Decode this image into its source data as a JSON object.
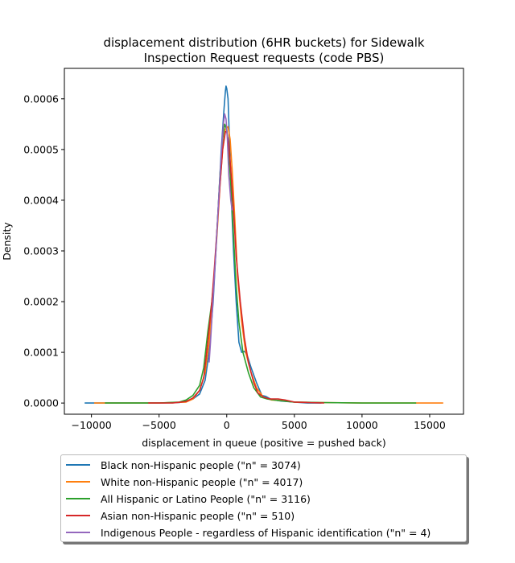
{
  "chart_data": {
    "type": "line",
    "title": "displacement distribution (6HR buckets) for Sidewalk\nInspection Request requests (code PBS)",
    "xlabel": "displacement in queue (positive = pushed back)",
    "ylabel": "Density",
    "xlim": [
      -12000,
      17500
    ],
    "ylim": [
      -2.2e-05,
      0.00066
    ],
    "x_ticks": [
      -10000,
      -5000,
      0,
      5000,
      10000,
      15000
    ],
    "x_tick_labels": [
      "−10000",
      "−5000",
      "0",
      "5000",
      "10000",
      "15000"
    ],
    "y_ticks": [
      0.0,
      0.0001,
      0.0002,
      0.0003,
      0.0004,
      0.0005,
      0.0006
    ],
    "y_tick_labels": [
      "0.0000",
      "0.0001",
      "0.0002",
      "0.0003",
      "0.0004",
      "0.0005",
      "0.0006"
    ],
    "grid": false,
    "legend_position": "below-plot",
    "series": [
      {
        "name": "Black non-Hispanic people (\"n\" = 3074)",
        "color": "#1f77b4",
        "points": [
          [
            -10500,
            0
          ],
          [
            -5000,
            0
          ],
          [
            -3500,
            1e-06
          ],
          [
            -3000,
            4e-06
          ],
          [
            -2500,
            8e-06
          ],
          [
            -2000,
            1.8e-05
          ],
          [
            -1600,
            4.5e-05
          ],
          [
            -1300,
            0.0001
          ],
          [
            -1000,
            0.0002
          ],
          [
            -800,
            0.0003
          ],
          [
            -600,
            0.0004
          ],
          [
            -400,
            0.0005
          ],
          [
            -200,
            0.00058
          ],
          [
            -100,
            0.000615
          ],
          [
            -50,
            0.000625
          ],
          [
            0,
            0.00062
          ],
          [
            100,
            0.0006
          ],
          [
            200,
            0.00052
          ],
          [
            350,
            0.0004
          ],
          [
            500,
            0.0003
          ],
          [
            700,
            0.0002
          ],
          [
            900,
            0.00012
          ],
          [
            1100,
            0.0001
          ],
          [
            1300,
            0.000102
          ],
          [
            1500,
            9.5e-05
          ],
          [
            1800,
            7e-05
          ],
          [
            2200,
            4e-05
          ],
          [
            2600,
            1.5e-05
          ],
          [
            2900,
            1.3e-05
          ],
          [
            3300,
            7e-06
          ],
          [
            4000,
            4e-06
          ],
          [
            5000,
            2e-06
          ],
          [
            6000,
            0
          ],
          [
            7000,
            0
          ]
        ]
      },
      {
        "name": "White non-Hispanic people (\"n\" = 4017)",
        "color": "#ff7f0e",
        "points": [
          [
            -9800,
            0
          ],
          [
            -5000,
            0
          ],
          [
            -3000,
            2e-06
          ],
          [
            -2500,
            8e-06
          ],
          [
            -2000,
            2.5e-05
          ],
          [
            -1600,
            6e-05
          ],
          [
            -1300,
            0.00012
          ],
          [
            -1000,
            0.00022
          ],
          [
            -700,
            0.00034
          ],
          [
            -500,
            0.00043
          ],
          [
            -300,
            0.0005
          ],
          [
            -100,
            0.00054
          ],
          [
            100,
            0.000545
          ],
          [
            250,
            0.00052
          ],
          [
            400,
            0.00046
          ],
          [
            600,
            0.00036
          ],
          [
            800,
            0.00025
          ],
          [
            1100,
            0.00016
          ],
          [
            1400,
            0.0001
          ],
          [
            1800,
            6e-05
          ],
          [
            2200,
            3e-05
          ],
          [
            2700,
            1.2e-05
          ],
          [
            3300,
            6e-06
          ],
          [
            4000,
            5e-06
          ],
          [
            5000,
            2e-06
          ],
          [
            7000,
            1e-06
          ],
          [
            10000,
            0
          ],
          [
            16000,
            0
          ]
        ]
      },
      {
        "name": "All Hispanic or Latino People (\"n\" = 3116)",
        "color": "#2ca02c",
        "points": [
          [
            -9000,
            0
          ],
          [
            -5000,
            0
          ],
          [
            -3500,
            2e-06
          ],
          [
            -3000,
            6e-06
          ],
          [
            -2500,
            1.5e-05
          ],
          [
            -2000,
            3.5e-05
          ],
          [
            -1700,
            7e-05
          ],
          [
            -1400,
            0.00014
          ],
          [
            -1100,
            0.0002
          ],
          [
            -900,
            0.00026
          ],
          [
            -700,
            0.00035
          ],
          [
            -500,
            0.00045
          ],
          [
            -300,
            0.00052
          ],
          [
            -150,
            0.00055
          ],
          [
            0,
            0.00054
          ],
          [
            150,
            0.0005
          ],
          [
            300,
            0.00043
          ],
          [
            500,
            0.00033
          ],
          [
            700,
            0.00023
          ],
          [
            900,
            0.00016
          ],
          [
            1200,
            0.0001
          ],
          [
            1600,
            6e-05
          ],
          [
            2000,
            3e-05
          ],
          [
            2500,
            1.2e-05
          ],
          [
            3000,
            8e-06
          ],
          [
            3800,
            5e-06
          ],
          [
            5000,
            2e-06
          ],
          [
            7000,
            1e-06
          ],
          [
            10000,
            0
          ],
          [
            14000,
            0
          ]
        ]
      },
      {
        "name": "Asian non-Hispanic people (\"n\" = 510)",
        "color": "#d62728",
        "points": [
          [
            -5800,
            0
          ],
          [
            -4000,
            0
          ],
          [
            -3000,
            3e-06
          ],
          [
            -2500,
            1e-05
          ],
          [
            -2000,
            2.5e-05
          ],
          [
            -1700,
            5e-05
          ],
          [
            -1400,
            0.00012
          ],
          [
            -1100,
            0.0002
          ],
          [
            -900,
            0.00027
          ],
          [
            -700,
            0.00035
          ],
          [
            -500,
            0.00043
          ],
          [
            -300,
            0.0005
          ],
          [
            -100,
            0.000535
          ],
          [
            0,
            0.000535
          ],
          [
            150,
            0.00051
          ],
          [
            300,
            0.00046
          ],
          [
            500,
            0.00038
          ],
          [
            700,
            0.00029
          ],
          [
            1000,
            0.0002
          ],
          [
            1300,
            0.00013
          ],
          [
            1600,
            8e-05
          ],
          [
            2000,
            4e-05
          ],
          [
            2300,
            2e-05
          ],
          [
            2700,
            1.2e-05
          ],
          [
            3200,
            8e-06
          ],
          [
            3800,
            8e-06
          ],
          [
            4300,
            6e-06
          ],
          [
            5000,
            2e-06
          ],
          [
            6000,
            1e-06
          ],
          [
            7200,
            0
          ]
        ]
      },
      {
        "name": "Indigenous People - regardless of Hispanic identification (\"n\" = 4)",
        "color": "#9467bd",
        "points": [
          [
            -1300,
            8e-05
          ],
          [
            -1200,
            0.00012
          ],
          [
            -1000,
            0.00021
          ],
          [
            -800,
            0.0003
          ],
          [
            -600,
            0.0004
          ],
          [
            -400,
            0.00049
          ],
          [
            -250,
            0.00055
          ],
          [
            -150,
            0.00057
          ],
          [
            -50,
            0.00056
          ],
          [
            50,
            0.00052
          ],
          [
            150,
            0.00045
          ],
          [
            300,
            0.0004
          ],
          [
            400,
            0.00038
          ]
        ]
      }
    ]
  }
}
